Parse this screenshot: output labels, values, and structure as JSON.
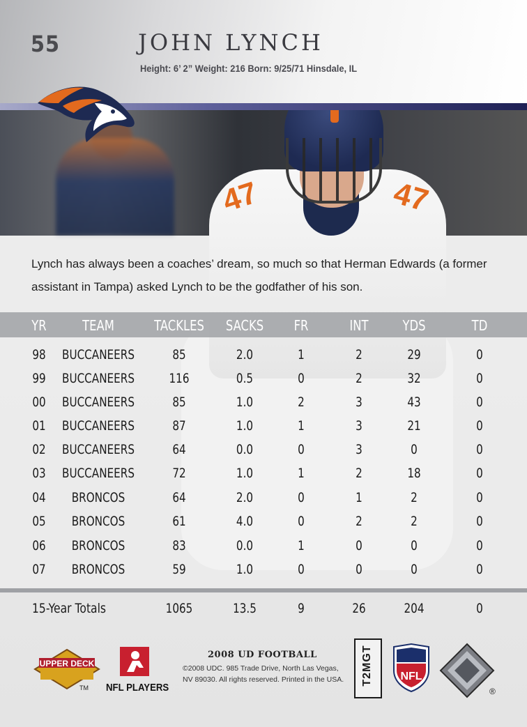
{
  "header": {
    "number": "55",
    "name": "JOHN LYNCH",
    "bio": "Height: 6’ 2” Weight: 216  Born: 9/25/71 Hinsdale, IL"
  },
  "photo": {
    "jersey_number": "47"
  },
  "blurb": "Lynch has always been a coaches’ dream, so much so that Herman Edwards (a former assistant in Tampa) asked Lynch to be the godfather of his son.",
  "stats": {
    "headers": [
      "YR",
      "TEAM",
      "TACKLES",
      "SACKS",
      "FR",
      "INT",
      "YDS",
      "TD"
    ],
    "rows": [
      {
        "yr": "98",
        "team": "BUCCANEERS",
        "tackles": "85",
        "sacks": "2.0",
        "fr": "1",
        "int": "2",
        "yds": "29",
        "td": "0"
      },
      {
        "yr": "99",
        "team": "BUCCANEERS",
        "tackles": "116",
        "sacks": "0.5",
        "fr": "0",
        "int": "2",
        "yds": "32",
        "td": "0"
      },
      {
        "yr": "00",
        "team": "BUCCANEERS",
        "tackles": "85",
        "sacks": "1.0",
        "fr": "2",
        "int": "3",
        "yds": "43",
        "td": "0"
      },
      {
        "yr": "01",
        "team": "BUCCANEERS",
        "tackles": "87",
        "sacks": "1.0",
        "fr": "1",
        "int": "3",
        "yds": "21",
        "td": "0"
      },
      {
        "yr": "02",
        "team": "BUCCANEERS",
        "tackles": "64",
        "sacks": "0.0",
        "fr": "0",
        "int": "3",
        "yds": "0",
        "td": "0"
      },
      {
        "yr": "03",
        "team": "BUCCANEERS",
        "tackles": "72",
        "sacks": "1.0",
        "fr": "1",
        "int": "2",
        "yds": "18",
        "td": "0"
      },
      {
        "yr": "04",
        "team": "BRONCOS",
        "tackles": "64",
        "sacks": "2.0",
        "fr": "0",
        "int": "1",
        "yds": "2",
        "td": "0"
      },
      {
        "yr": "05",
        "team": "BRONCOS",
        "tackles": "61",
        "sacks": "4.0",
        "fr": "0",
        "int": "2",
        "yds": "2",
        "td": "0"
      },
      {
        "yr": "06",
        "team": "BRONCOS",
        "tackles": "83",
        "sacks": "0.0",
        "fr": "1",
        "int": "0",
        "yds": "0",
        "td": "0"
      },
      {
        "yr": "07",
        "team": "BRONCOS",
        "tackles": "59",
        "sacks": "1.0",
        "fr": "0",
        "int": "0",
        "yds": "0",
        "td": "0"
      }
    ],
    "totals": {
      "label": "15-Year Totals",
      "tackles": "1065",
      "sacks": "13.5",
      "fr": "9",
      "int": "26",
      "yds": "204",
      "td": "0"
    }
  },
  "footer": {
    "upper_deck_logo_text": "UPPER DECK",
    "tm": "TM",
    "nfl_players": "NFL PLAYERS",
    "ud_football": "2008 UD FOOTBALL",
    "copyright": "©2008 UDC. 985 Trade Drive, North Las Vegas, NV 89030. All rights reserved. Printed in the USA.",
    "code": "T2MGT",
    "nfl_shield_text": "NFL",
    "registered": "®"
  },
  "colors": {
    "broncos_orange": "#e36a1e",
    "broncos_navy": "#1e2a52",
    "band": "#1e2054",
    "header_bar": "#a0a2a6"
  }
}
